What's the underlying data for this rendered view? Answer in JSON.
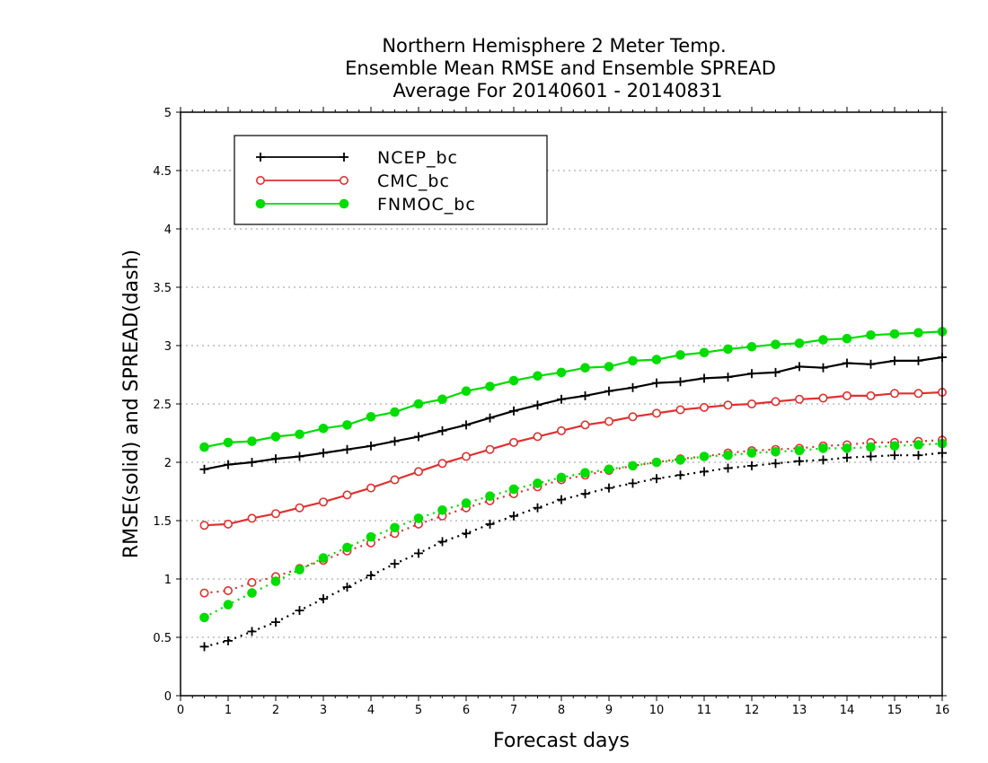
{
  "chart_data": {
    "type": "line",
    "title": [
      "Northern Hemisphere 2 Meter Temp.",
      "Ensemble Mean RMSE and Ensemble SPREAD",
      "Average For 20140601 - 20140831"
    ],
    "xlabel": "Forecast days",
    "ylabel": "RMSE(solid) and SPREAD(dash)",
    "xlim": [
      0,
      16
    ],
    "ylim": [
      0,
      5
    ],
    "x_ticks": [
      "0",
      "1",
      "2",
      "3",
      "4",
      "5",
      "6",
      "7",
      "8",
      "9",
      "10",
      "11",
      "12",
      "13",
      "14",
      "15",
      "16"
    ],
    "y_ticks": [
      "0",
      "0.5",
      "1",
      "1.5",
      "2",
      "2.5",
      "3",
      "3.5",
      "4",
      "4.5",
      "5"
    ],
    "grid": "horizontal dotted",
    "legend_position": "top-left",
    "x": [
      0.5,
      1,
      1.5,
      2,
      2.5,
      3,
      3.5,
      4,
      4.5,
      5,
      5.5,
      6,
      6.5,
      7,
      7.5,
      8,
      8.5,
      9,
      9.5,
      10,
      10.5,
      11,
      11.5,
      12,
      12.5,
      13,
      13.5,
      14,
      14.5,
      15,
      15.5,
      16
    ],
    "series": [
      {
        "name": "NCEP_bc",
        "color": "#000000",
        "marker": "plus",
        "rmse": [
          1.94,
          1.98,
          2.0,
          2.03,
          2.05,
          2.08,
          2.11,
          2.14,
          2.18,
          2.22,
          2.27,
          2.32,
          2.38,
          2.44,
          2.49,
          2.54,
          2.57,
          2.61,
          2.64,
          2.68,
          2.69,
          2.72,
          2.73,
          2.76,
          2.77,
          2.82,
          2.81,
          2.85,
          2.84,
          2.87,
          2.87,
          2.9
        ],
        "spread": [
          0.42,
          0.47,
          0.55,
          0.63,
          0.73,
          0.83,
          0.93,
          1.03,
          1.13,
          1.22,
          1.32,
          1.39,
          1.47,
          1.54,
          1.61,
          1.68,
          1.73,
          1.78,
          1.82,
          1.86,
          1.89,
          1.92,
          1.95,
          1.97,
          1.99,
          2.01,
          2.02,
          2.04,
          2.05,
          2.06,
          2.06,
          2.08
        ]
      },
      {
        "name": "CMC_bc",
        "color": "#e03030",
        "marker": "open-circle",
        "rmse": [
          1.46,
          1.47,
          1.52,
          1.56,
          1.61,
          1.66,
          1.72,
          1.78,
          1.85,
          1.92,
          1.99,
          2.05,
          2.11,
          2.17,
          2.22,
          2.27,
          2.32,
          2.35,
          2.39,
          2.42,
          2.45,
          2.47,
          2.49,
          2.5,
          2.52,
          2.54,
          2.55,
          2.57,
          2.57,
          2.59,
          2.59,
          2.6
        ],
        "spread": [
          0.88,
          0.9,
          0.97,
          1.02,
          1.09,
          1.16,
          1.24,
          1.31,
          1.39,
          1.47,
          1.54,
          1.61,
          1.67,
          1.73,
          1.79,
          1.85,
          1.89,
          1.93,
          1.97,
          2.0,
          2.03,
          2.05,
          2.08,
          2.1,
          2.11,
          2.12,
          2.14,
          2.15,
          2.17,
          2.17,
          2.18,
          2.19
        ]
      },
      {
        "name": "FNMOC_bc",
        "color": "#00dd00",
        "marker": "filled-circle",
        "rmse": [
          2.13,
          2.17,
          2.18,
          2.22,
          2.24,
          2.29,
          2.32,
          2.39,
          2.43,
          2.5,
          2.54,
          2.61,
          2.65,
          2.7,
          2.74,
          2.77,
          2.81,
          2.82,
          2.87,
          2.88,
          2.92,
          2.94,
          2.97,
          2.99,
          3.01,
          3.02,
          3.05,
          3.06,
          3.09,
          3.1,
          3.11,
          3.12
        ],
        "spread": [
          0.67,
          0.78,
          0.88,
          0.98,
          1.08,
          1.18,
          1.27,
          1.36,
          1.44,
          1.52,
          1.59,
          1.65,
          1.71,
          1.77,
          1.82,
          1.87,
          1.91,
          1.94,
          1.97,
          2.0,
          2.02,
          2.05,
          2.06,
          2.08,
          2.09,
          2.1,
          2.12,
          2.12,
          2.13,
          2.14,
          2.15,
          2.16
        ]
      }
    ]
  }
}
